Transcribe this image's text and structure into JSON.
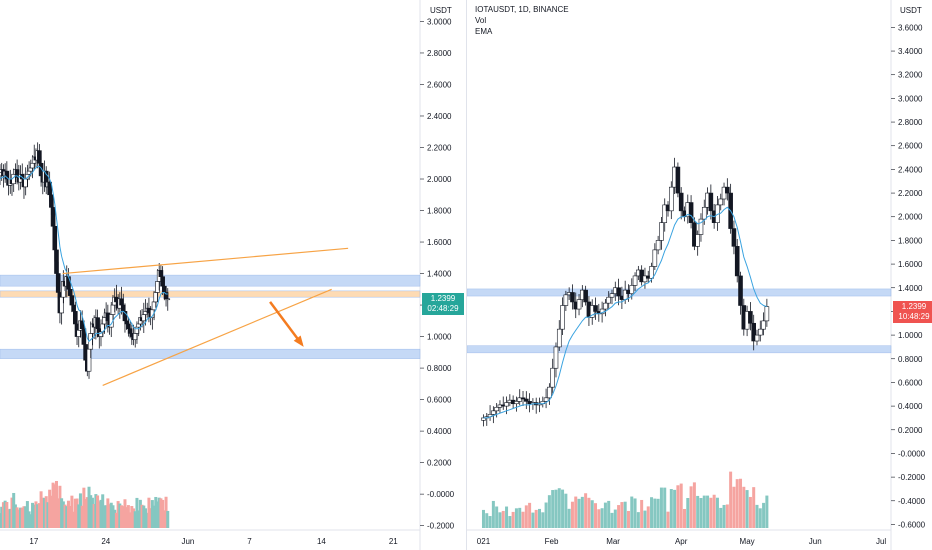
{
  "chart_data": [
    {
      "type": "candlestick",
      "symbol": "",
      "currency_label": "USDT",
      "y_ticks": [
        "3.0000",
        "2.8000",
        "2.6000",
        "2.4000",
        "2.2000",
        "2.0000",
        "1.8000",
        "1.6000",
        "1.4000",
        "1.2000",
        "1.0000",
        "0.8000",
        "0.6000",
        "0.4000",
        "0.2000",
        "-0.0000",
        "-0.2000"
      ],
      "y_tick_values": [
        3.0,
        2.8,
        2.6,
        2.4,
        2.2,
        2.0,
        1.8,
        1.6,
        1.4,
        1.2,
        1.0,
        0.8,
        0.6,
        0.4,
        0.2,
        0.0,
        -0.2
      ],
      "ylim": [
        -0.215,
        3.06
      ],
      "x_ticks": [
        {
          "label": "17",
          "day": 17
        },
        {
          "label": "24",
          "day": 24
        },
        {
          "label": "Jun",
          "day": 32
        },
        {
          "label": "7",
          "day": 38
        },
        {
          "label": "14",
          "day": 45
        },
        {
          "label": "21",
          "day": 52
        }
      ],
      "xlim": [
        13.7,
        54.6
      ],
      "last_price": "1.2399",
      "countdown": "02:48:29",
      "candles_x_start_day": 13.7,
      "candles_x_step_day": 0.1667,
      "candles_close": [
        2.04,
        2.06,
        2.02,
        2.05,
        2.0,
        1.96,
        2.0,
        1.97,
        2.03,
        2.06,
        2.01,
        1.98,
        2.03,
        2.0,
        1.95,
        2.0,
        2.03,
        2.05,
        2.07,
        2.1,
        2.14,
        2.12,
        2.18,
        2.1,
        2.02,
        1.98,
        2.05,
        1.95,
        1.98,
        1.9,
        1.82,
        1.7,
        1.55,
        1.4,
        1.28,
        1.15,
        1.25,
        1.35,
        1.32,
        1.38,
        1.3,
        1.26,
        1.2,
        1.16,
        1.08,
        1.0,
        1.04,
        1.1,
        1.05,
        0.95,
        0.85,
        0.78,
        0.92,
        1.02,
        1.08,
        1.06,
        1.12,
        1.05,
        1.0,
        1.03,
        1.08,
        1.12,
        1.15,
        1.1,
        1.06,
        1.14,
        1.2,
        1.25,
        1.22,
        1.18,
        1.24,
        1.2,
        1.16,
        1.1,
        1.08,
        1.05,
        1.02,
        1.0,
        0.98,
        1.02,
        1.06,
        1.08,
        1.12,
        1.1,
        1.14,
        1.16,
        1.18,
        1.15,
        1.12,
        1.17,
        1.22,
        1.28,
        1.35,
        1.42,
        1.38,
        1.32,
        1.28,
        1.24,
        1.24
      ],
      "ema_values": [
        2.0,
        2.01,
        2.01,
        2.02,
        2.01,
        2.0,
        2.0,
        2.0,
        2.01,
        2.02,
        2.02,
        2.01,
        2.02,
        2.01,
        2.0,
        2.0,
        2.01,
        2.02,
        2.03,
        2.04,
        2.06,
        2.07,
        2.08,
        2.08,
        2.07,
        2.05,
        2.05,
        2.03,
        2.02,
        2.0,
        1.97,
        1.91,
        1.84,
        1.75,
        1.66,
        1.57,
        1.51,
        1.47,
        1.43,
        1.41,
        1.38,
        1.35,
        1.32,
        1.29,
        1.25,
        1.2,
        1.17,
        1.16,
        1.13,
        1.09,
        1.04,
        0.99,
        0.97,
        0.98,
        0.99,
        1.0,
        1.02,
        1.02,
        1.02,
        1.02,
        1.03,
        1.04,
        1.06,
        1.07,
        1.07,
        1.08,
        1.1,
        1.12,
        1.13,
        1.14,
        1.15,
        1.16,
        1.16,
        1.15,
        1.14,
        1.12,
        1.1,
        1.08,
        1.06,
        1.05,
        1.05,
        1.05,
        1.06,
        1.07,
        1.08,
        1.09,
        1.11,
        1.12,
        1.12,
        1.13,
        1.15,
        1.17,
        1.2,
        1.24,
        1.27,
        1.28,
        1.28,
        1.27,
        1.27
      ],
      "support_resistance_zones": [
        {
          "from": 1.32,
          "to": 1.39,
          "color": "#bcd3f5"
        },
        {
          "from": 1.25,
          "to": 1.29,
          "color": "#fdd5a8"
        },
        {
          "from": 0.86,
          "to": 0.92,
          "color": "#bcd3f5"
        }
      ],
      "trendlines": [
        {
          "x0_day": 19.8,
          "y0": 1.4,
          "x1_day": 47.6,
          "y1": 1.56,
          "color": "#f7a345"
        },
        {
          "x0_day": 23.7,
          "y0": 0.69,
          "x1_day": 46.0,
          "y1": 1.3,
          "color": "#f7a345"
        }
      ],
      "arrow": {
        "x0_day": 40.0,
        "y0": 1.22,
        "x1_day": 43.1,
        "y1": 0.95,
        "color": "#f47c20"
      },
      "colors": {
        "up": "#ffffff",
        "down": "#131722",
        "wick": "#131722",
        "ema": "#3aa3e0",
        "vol_up": "#85c7c1",
        "vol_down": "#f5a4a0",
        "last_price_bg": "#26a69a"
      }
    },
    {
      "type": "candlestick",
      "symbol": "IOTAUSDT, 1D, BINANCE",
      "indicators": [
        "Vol",
        "EMA"
      ],
      "currency_label": "USDT",
      "y_ticks": [
        "3.6000",
        "3.4000",
        "3.2000",
        "3.0000",
        "2.8000",
        "2.6000",
        "2.4000",
        "2.2000",
        "2.0000",
        "1.8000",
        "1.6000",
        "1.4000",
        "1.2000",
        "1.0000",
        "0.8000",
        "0.6000",
        "0.4000",
        "0.2000",
        "-0.0000",
        "-0.2000",
        "-0.4000",
        "-0.6000"
      ],
      "y_tick_values": [
        3.6,
        3.4,
        3.2,
        3.0,
        2.8,
        2.6,
        2.4,
        2.2,
        2.0,
        1.8,
        1.6,
        1.4,
        1.2,
        1.0,
        0.8,
        0.6,
        0.4,
        0.2,
        0.0,
        -0.2,
        -0.4,
        -0.6
      ],
      "ylim": [
        -0.63,
        3.73
      ],
      "x_ticks": [
        {
          "label": "021",
          "day": 1
        },
        {
          "label": "Feb",
          "day": 32
        },
        {
          "label": "Mar",
          "day": 60
        },
        {
          "label": "Apr",
          "day": 91
        },
        {
          "label": "May",
          "day": 121
        },
        {
          "label": "Jun",
          "day": 152
        },
        {
          "label": "Jul",
          "day": 182
        }
      ],
      "xlim": [
        -6.5,
        186.5
      ],
      "last_price": "1.2399",
      "countdown": "10:48:29",
      "candles_x_start_day": 1,
      "candles_x_step_day": 1.5,
      "candles_close": [
        0.3,
        0.31,
        0.33,
        0.36,
        0.39,
        0.41,
        0.4,
        0.43,
        0.45,
        0.42,
        0.44,
        0.47,
        0.46,
        0.44,
        0.42,
        0.43,
        0.41,
        0.42,
        0.44,
        0.47,
        0.56,
        0.72,
        0.9,
        1.05,
        1.25,
        1.34,
        1.36,
        1.28,
        1.22,
        1.3,
        1.38,
        1.28,
        1.15,
        1.25,
        1.2,
        1.18,
        1.22,
        1.27,
        1.32,
        1.35,
        1.4,
        1.33,
        1.3,
        1.38,
        1.35,
        1.42,
        1.5,
        1.55,
        1.45,
        1.5,
        1.48,
        1.58,
        1.72,
        1.8,
        1.95,
        2.1,
        2.05,
        2.25,
        2.42,
        2.2,
        2.05,
        2.0,
        2.12,
        1.95,
        1.75,
        1.85,
        1.98,
        2.08,
        2.2,
        2.05,
        1.95,
        2.1,
        2.15,
        2.25,
        2.2,
        1.9,
        1.75,
        1.5,
        1.25,
        1.05,
        1.2,
        1.1,
        0.95,
        1.0,
        1.05,
        1.12,
        1.24
      ],
      "ema_values": [
        0.3,
        0.3,
        0.31,
        0.32,
        0.33,
        0.34,
        0.35,
        0.36,
        0.37,
        0.38,
        0.39,
        0.4,
        0.41,
        0.41,
        0.41,
        0.42,
        0.42,
        0.42,
        0.42,
        0.43,
        0.45,
        0.5,
        0.57,
        0.66,
        0.77,
        0.87,
        0.95,
        1.0,
        1.04,
        1.08,
        1.12,
        1.15,
        1.15,
        1.17,
        1.18,
        1.18,
        1.19,
        1.2,
        1.22,
        1.24,
        1.27,
        1.28,
        1.28,
        1.3,
        1.31,
        1.33,
        1.36,
        1.39,
        1.41,
        1.43,
        1.44,
        1.47,
        1.51,
        1.57,
        1.63,
        1.71,
        1.77,
        1.85,
        1.93,
        1.98,
        2.0,
        2.0,
        2.02,
        2.01,
        1.97,
        1.94,
        1.95,
        1.97,
        2.0,
        2.01,
        2.0,
        2.02,
        2.03,
        2.06,
        2.08,
        2.05,
        2.0,
        1.91,
        1.79,
        1.66,
        1.58,
        1.49,
        1.39,
        1.32,
        1.27,
        1.25,
        1.24
      ],
      "support_resistance_zones": [
        {
          "from": 1.33,
          "to": 1.39,
          "color": "#bcd3f5"
        },
        {
          "from": 0.85,
          "to": 0.91,
          "color": "#bcd3f5"
        }
      ],
      "colors": {
        "up": "#ffffff",
        "down": "#131722",
        "wick": "#131722",
        "ema": "#3aa3e0",
        "vol_up": "#85c7c1",
        "vol_down": "#f5a4a0",
        "last_price_bg": "#ef5350"
      }
    }
  ]
}
